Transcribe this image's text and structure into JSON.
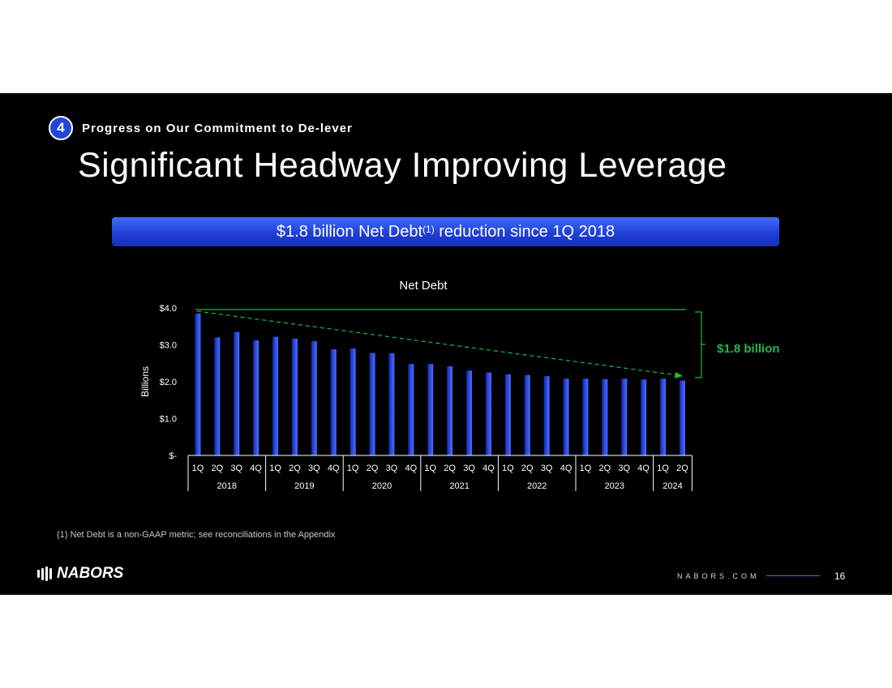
{
  "header": {
    "badge": "4",
    "section": "Progress on Our Commitment to De-lever",
    "title": "Significant Headway Improving Leverage"
  },
  "banner": {
    "pre": "$1.8 billion Net Debt",
    "sup": "(1)",
    "post": " reduction since 1Q 2018"
  },
  "colors": {
    "bar": "#2a4ae0",
    "accent_green": "#1fb84a",
    "banner_blue": "#2446d8"
  },
  "chart_data": {
    "type": "bar",
    "title": "Net Debt",
    "ylabel": "Billions",
    "xlabel": "",
    "ylim": [
      0,
      4
    ],
    "y_ticks": [
      {
        "value": 4,
        "label": "$4.0"
      },
      {
        "value": 3,
        "label": "$3.0"
      },
      {
        "value": 2,
        "label": "$2.0"
      },
      {
        "value": 1,
        "label": "$1.0"
      },
      {
        "value": 0,
        "label": "$-"
      }
    ],
    "categories": [
      "1Q",
      "2Q",
      "3Q",
      "4Q",
      "1Q",
      "2Q",
      "3Q",
      "4Q",
      "1Q",
      "2Q",
      "3Q",
      "4Q",
      "1Q",
      "2Q",
      "3Q",
      "4Q",
      "1Q",
      "2Q",
      "3Q",
      "4Q",
      "1Q",
      "2Q",
      "3Q",
      "4Q",
      "1Q",
      "2Q"
    ],
    "year_groups": [
      {
        "label": "2018",
        "count": 4
      },
      {
        "label": "2019",
        "count": 4
      },
      {
        "label": "2020",
        "count": 4
      },
      {
        "label": "2021",
        "count": 4
      },
      {
        "label": "2022",
        "count": 4
      },
      {
        "label": "2023",
        "count": 4
      },
      {
        "label": "2024",
        "count": 2
      }
    ],
    "values": [
      3.85,
      3.2,
      3.35,
      3.12,
      3.22,
      3.17,
      3.1,
      2.88,
      2.9,
      2.78,
      2.77,
      2.48,
      2.48,
      2.42,
      2.3,
      2.25,
      2.2,
      2.18,
      2.15,
      2.08,
      2.08,
      2.07,
      2.08,
      2.06,
      2.08,
      2.03
    ],
    "annotation": "$1.8 billion"
  },
  "footnote": "(1) Net Debt is a non-GAAP metric; see reconciliations in the Appendix",
  "footer": {
    "logo": "NABORS",
    "site": "NABORS.COM",
    "page": "16"
  }
}
